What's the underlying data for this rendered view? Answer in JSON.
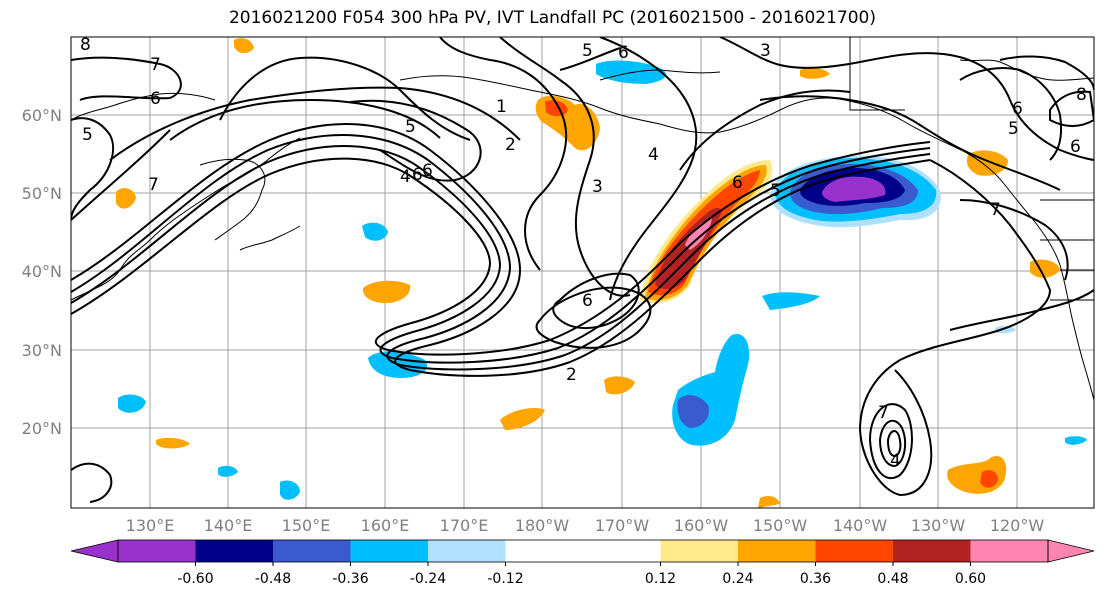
{
  "title": "2016021200 F054 300 hPa PV, IVT Landfall PC (2016021500 - 2016021700)",
  "latitude_labels": [
    "60°N",
    "50°N",
    "40°N",
    "30°N",
    "20°N"
  ],
  "longitude_labels": [
    "130°E",
    "140°E",
    "150°E",
    "160°E",
    "170°E",
    "180°W",
    "170°W",
    "160°W",
    "150°W",
    "140°W",
    "130°W",
    "120°W"
  ],
  "colorbar": {
    "colors": [
      "#9932CC",
      "#00008B",
      "#3A5BCD",
      "#00BFFF",
      "#B0E0FF",
      "#FFFFFF",
      "#FFFFFF",
      "#FFE98A",
      "#FFA500",
      "#FF4500",
      "#B22222",
      "#FF85B0"
    ],
    "tick_labels": [
      "-0.60",
      "-0.48",
      "-0.36",
      "-0.24",
      "-0.12",
      "0.12",
      "0.24",
      "0.36",
      "0.48",
      "0.60"
    ]
  },
  "contour_labels": [
    "6",
    "7",
    "5",
    "6",
    "5",
    "3",
    "6",
    "5",
    "2",
    "1",
    "6",
    "4",
    "3",
    "6",
    "5",
    "6",
    "2",
    "7",
    "7",
    "8",
    "8",
    "6",
    "7",
    "4",
    "4",
    "6",
    "5"
  ]
}
